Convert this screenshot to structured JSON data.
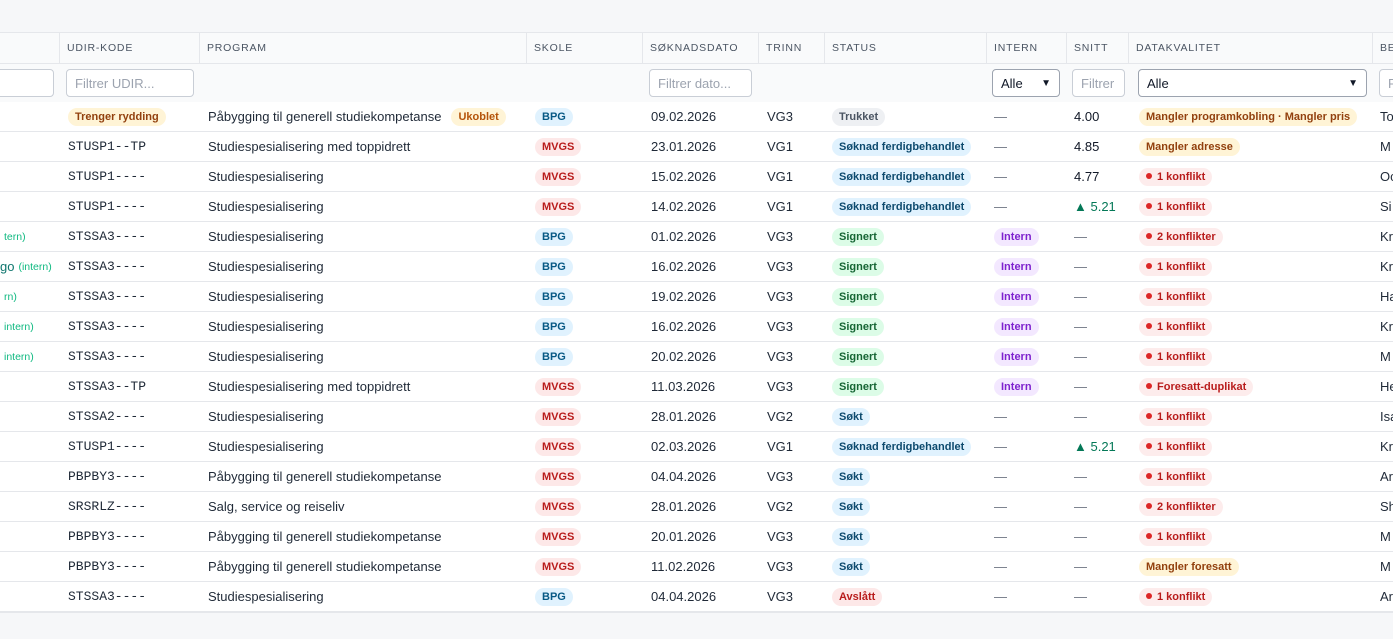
{
  "columns": [
    {
      "key": "udir",
      "label": "UDIR-KODE"
    },
    {
      "key": "program",
      "label": "PROGRAM"
    },
    {
      "key": "skole",
      "label": "SKOLE"
    },
    {
      "key": "dato",
      "label": "SØKNADSDATO"
    },
    {
      "key": "trinn",
      "label": "TRINN"
    },
    {
      "key": "status",
      "label": "STATUS"
    },
    {
      "key": "intern",
      "label": "INTERN"
    },
    {
      "key": "snitt",
      "label": "SNITT"
    },
    {
      "key": "datakvalitet",
      "label": "DATAKVALITET"
    },
    {
      "key": "last",
      "label": "BE"
    }
  ],
  "filters": {
    "udir_placeholder": "Filtrer UDIR...",
    "dato_placeholder": "Filtrer dato...",
    "intern_value": "Alle",
    "snitt_placeholder": "Filtrer",
    "datakvalitet_value": "Alle",
    "last_placeholder": "F"
  },
  "rows": [
    {
      "name": "",
      "name_intern": "",
      "udir": "",
      "udir_badge": "Trenger rydding",
      "program": "Påbygging til generell studiekompetanse",
      "program_badge": "Ukoblet",
      "skole": "BPG",
      "dato": "09.02.2026",
      "trinn": "VG3",
      "status": "Trukket",
      "status_type": "trukket",
      "intern": "—",
      "intern_badge": "",
      "snitt": "4.00",
      "snitt_up": "",
      "dq": "Mangler programkobling · Mangler pris",
      "dq_type": "warn",
      "last": "To"
    },
    {
      "name": "",
      "name_intern": "",
      "udir": "STUSP1--TP",
      "udir_badge": "",
      "program": "Studiespesialisering med toppidrett",
      "program_badge": "",
      "skole": "MVGS",
      "dato": "23.01.2026",
      "trinn": "VG1",
      "status": "Søknad ferdigbehandlet",
      "status_type": "ferdig",
      "intern": "—",
      "intern_badge": "",
      "snitt": "4.85",
      "snitt_up": "",
      "dq": "Mangler adresse",
      "dq_type": "warn",
      "last": "M"
    },
    {
      "name": "",
      "name_intern": "",
      "udir": "STUSP1----",
      "udir_badge": "",
      "program": "Studiespesialisering",
      "program_badge": "",
      "skole": "MVGS",
      "dato": "15.02.2026",
      "trinn": "VG1",
      "status": "Søknad ferdigbehandlet",
      "status_type": "ferdig",
      "intern": "—",
      "intern_badge": "",
      "snitt": "4.77",
      "snitt_up": "",
      "dq": "1 konflikt",
      "dq_type": "conf",
      "last": "Oc"
    },
    {
      "name": "",
      "name_intern": "",
      "udir": "STUSP1----",
      "udir_badge": "",
      "program": "Studiespesialisering",
      "program_badge": "",
      "skole": "MVGS",
      "dato": "14.02.2026",
      "trinn": "VG1",
      "status": "Søknad ferdigbehandlet",
      "status_type": "ferdig",
      "intern": "—",
      "intern_badge": "",
      "snitt": "",
      "snitt_up": "▲ 5.21",
      "dq": "1 konflikt",
      "dq_type": "conf",
      "last": "Si"
    },
    {
      "name": "",
      "name_intern": "tern)",
      "udir": "STSSA3----",
      "udir_badge": "",
      "program": "Studiespesialisering",
      "program_badge": "",
      "skole": "BPG",
      "dato": "01.02.2026",
      "trinn": "VG3",
      "status": "Signert",
      "status_type": "signert",
      "intern": "",
      "intern_badge": "Intern",
      "snitt": "—",
      "snitt_up": "",
      "dq": "2 konflikter",
      "dq_type": "conf",
      "last": "Kr"
    },
    {
      "name": "go",
      "name_intern": "(intern)",
      "udir": "STSSA3----",
      "udir_badge": "",
      "program": "Studiespesialisering",
      "program_badge": "",
      "skole": "BPG",
      "dato": "16.02.2026",
      "trinn": "VG3",
      "status": "Signert",
      "status_type": "signert",
      "intern": "",
      "intern_badge": "Intern",
      "snitt": "—",
      "snitt_up": "",
      "dq": "1 konflikt",
      "dq_type": "conf",
      "last": "Kr"
    },
    {
      "name": "",
      "name_intern": "rn)",
      "udir": "STSSA3----",
      "udir_badge": "",
      "program": "Studiespesialisering",
      "program_badge": "",
      "skole": "BPG",
      "dato": "19.02.2026",
      "trinn": "VG3",
      "status": "Signert",
      "status_type": "signert",
      "intern": "",
      "intern_badge": "Intern",
      "snitt": "—",
      "snitt_up": "",
      "dq": "1 konflikt",
      "dq_type": "conf",
      "last": "Ha"
    },
    {
      "name": "",
      "name_intern": "intern)",
      "udir": "STSSA3----",
      "udir_badge": "",
      "program": "Studiespesialisering",
      "program_badge": "",
      "skole": "BPG",
      "dato": "16.02.2026",
      "trinn": "VG3",
      "status": "Signert",
      "status_type": "signert",
      "intern": "",
      "intern_badge": "Intern",
      "snitt": "—",
      "snitt_up": "",
      "dq": "1 konflikt",
      "dq_type": "conf",
      "last": "Kr"
    },
    {
      "name": "",
      "name_intern": "intern)",
      "udir": "STSSA3----",
      "udir_badge": "",
      "program": "Studiespesialisering",
      "program_badge": "",
      "skole": "BPG",
      "dato": "20.02.2026",
      "trinn": "VG3",
      "status": "Signert",
      "status_type": "signert",
      "intern": "",
      "intern_badge": "Intern",
      "snitt": "—",
      "snitt_up": "",
      "dq": "1 konflikt",
      "dq_type": "conf",
      "last": "M"
    },
    {
      "name": "",
      "name_intern": "",
      "udir": "STSSA3--TP",
      "udir_badge": "",
      "program": "Studiespesialisering med toppidrett",
      "program_badge": "",
      "skole": "MVGS",
      "dato": "11.03.2026",
      "trinn": "VG3",
      "status": "Signert",
      "status_type": "signert",
      "intern": "",
      "intern_badge": "Intern",
      "snitt": "—",
      "snitt_up": "",
      "dq": "Foresatt-duplikat",
      "dq_type": "conf",
      "last": "He"
    },
    {
      "name": "",
      "name_intern": "",
      "udir": "STSSA2----",
      "udir_badge": "",
      "program": "Studiespesialisering",
      "program_badge": "",
      "skole": "MVGS",
      "dato": "28.01.2026",
      "trinn": "VG2",
      "status": "Søkt",
      "status_type": "sokt",
      "intern": "—",
      "intern_badge": "",
      "snitt": "—",
      "snitt_up": "",
      "dq": "1 konflikt",
      "dq_type": "conf",
      "last": "Isa"
    },
    {
      "name": "",
      "name_intern": "",
      "udir": "STUSP1----",
      "udir_badge": "",
      "program": "Studiespesialisering",
      "program_badge": "",
      "skole": "MVGS",
      "dato": "02.03.2026",
      "trinn": "VG1",
      "status": "Søknad ferdigbehandlet",
      "status_type": "ferdig",
      "intern": "—",
      "intern_badge": "",
      "snitt": "",
      "snitt_up": "▲ 5.21",
      "dq": "1 konflikt",
      "dq_type": "conf",
      "last": "Kr"
    },
    {
      "name": "",
      "name_intern": "",
      "udir": "PBPBY3----",
      "udir_badge": "",
      "program": "Påbygging til generell studiekompetanse",
      "program_badge": "",
      "skole": "MVGS",
      "dato": "04.04.2026",
      "trinn": "VG3",
      "status": "Søkt",
      "status_type": "sokt",
      "intern": "—",
      "intern_badge": "",
      "snitt": "—",
      "snitt_up": "",
      "dq": "1 konflikt",
      "dq_type": "conf",
      "last": "Ar"
    },
    {
      "name": "",
      "name_intern": "",
      "udir": "SRSRLZ----",
      "udir_badge": "",
      "program": "Salg, service og reiseliv",
      "program_badge": "",
      "skole": "MVGS",
      "dato": "28.01.2026",
      "trinn": "VG2",
      "status": "Søkt",
      "status_type": "sokt",
      "intern": "—",
      "intern_badge": "",
      "snitt": "—",
      "snitt_up": "",
      "dq": "2 konflikter",
      "dq_type": "conf",
      "last": "Sh"
    },
    {
      "name": "",
      "name_intern": "",
      "udir": "PBPBY3----",
      "udir_badge": "",
      "program": "Påbygging til generell studiekompetanse",
      "program_badge": "",
      "skole": "MVGS",
      "dato": "20.01.2026",
      "trinn": "VG3",
      "status": "Søkt",
      "status_type": "sokt",
      "intern": "—",
      "intern_badge": "",
      "snitt": "—",
      "snitt_up": "",
      "dq": "1 konflikt",
      "dq_type": "conf",
      "last": "M"
    },
    {
      "name": "",
      "name_intern": "",
      "udir": "PBPBY3----",
      "udir_badge": "",
      "program": "Påbygging til generell studiekompetanse",
      "program_badge": "",
      "skole": "MVGS",
      "dato": "11.02.2026",
      "trinn": "VG3",
      "status": "Søkt",
      "status_type": "sokt",
      "intern": "—",
      "intern_badge": "",
      "snitt": "—",
      "snitt_up": "",
      "dq": "Mangler foresatt",
      "dq_type": "warn",
      "last": "M"
    },
    {
      "name": "",
      "name_intern": "",
      "udir": "STSSA3----",
      "udir_badge": "",
      "program": "Studiespesialisering",
      "program_badge": "",
      "skole": "BPG",
      "dato": "04.04.2026",
      "trinn": "VG3",
      "status": "Avslått",
      "status_type": "avslatt",
      "intern": "—",
      "intern_badge": "",
      "snitt": "—",
      "snitt_up": "",
      "dq": "1 konflikt",
      "dq_type": "conf",
      "last": "Ar"
    }
  ]
}
